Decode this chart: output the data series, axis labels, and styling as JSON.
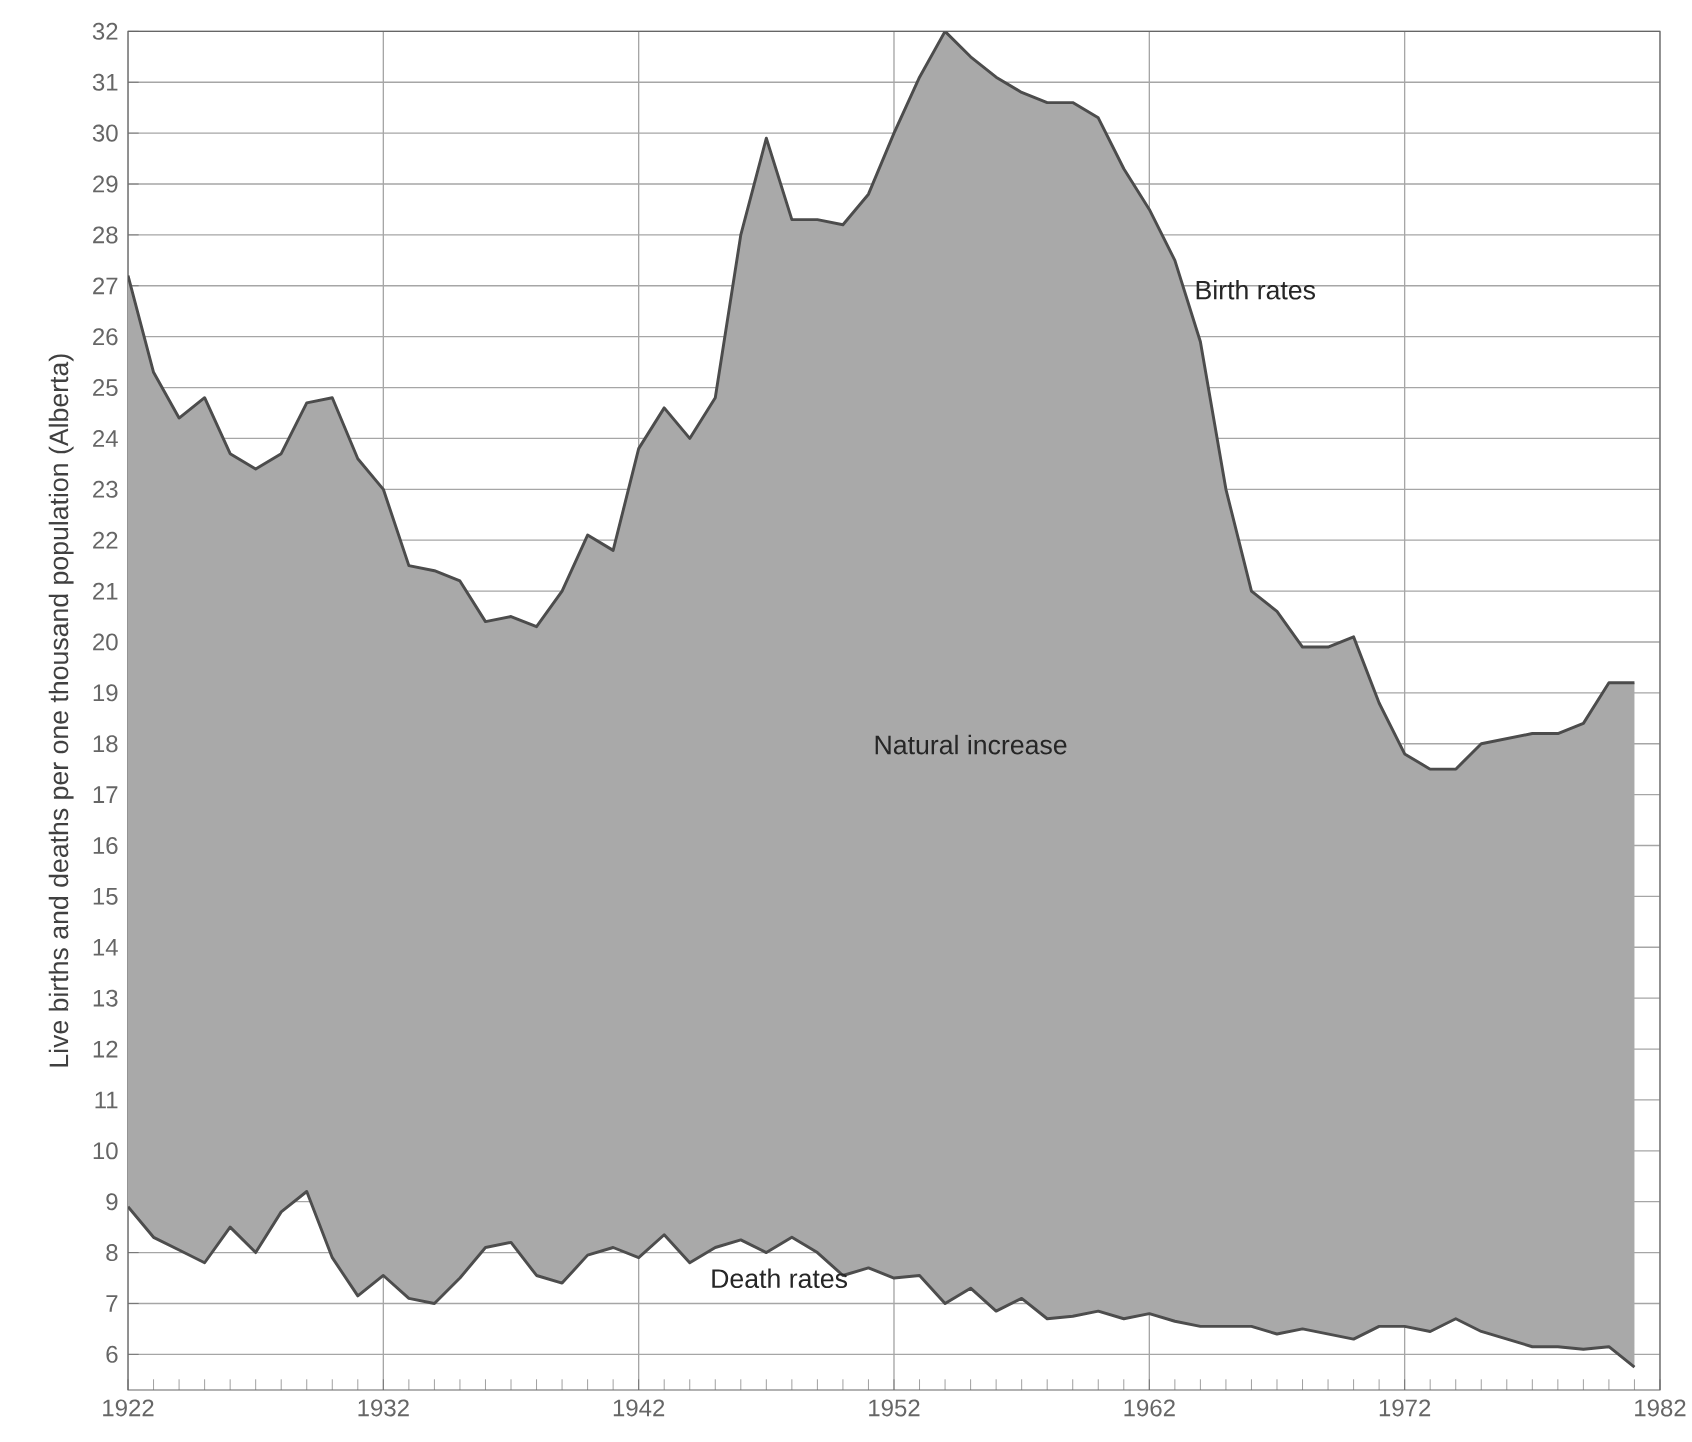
{
  "chart_data": {
    "type": "area",
    "ylabel": "Live births and deaths per one thousand population (Alberta)",
    "x": [
      1922,
      1923,
      1924,
      1925,
      1926,
      1927,
      1928,
      1929,
      1930,
      1931,
      1932,
      1933,
      1934,
      1935,
      1936,
      1937,
      1938,
      1939,
      1940,
      1941,
      1942,
      1943,
      1944,
      1945,
      1946,
      1947,
      1948,
      1949,
      1950,
      1951,
      1952,
      1953,
      1954,
      1955,
      1956,
      1957,
      1958,
      1959,
      1960,
      1961,
      1962,
      1963,
      1964,
      1965,
      1966,
      1967,
      1968,
      1969,
      1970,
      1971,
      1972,
      1973,
      1974,
      1975,
      1976,
      1977,
      1978,
      1979,
      1980,
      1981
    ],
    "series": [
      {
        "name": "Birth rates",
        "color": "#a9a9a9",
        "values": [
          27.2,
          25.3,
          24.4,
          24.8,
          23.7,
          23.4,
          23.7,
          24.7,
          24.8,
          23.6,
          23.0,
          21.5,
          21.4,
          21.2,
          20.4,
          20.5,
          20.3,
          21.0,
          22.1,
          21.8,
          23.8,
          24.6,
          24.0,
          24.8,
          28.0,
          29.9,
          28.3,
          28.3,
          28.2,
          28.8,
          30.0,
          31.1,
          32.0,
          31.5,
          31.1,
          30.8,
          30.6,
          30.6,
          30.3,
          29.3,
          28.5,
          27.5,
          25.9,
          23.0,
          21.0,
          20.6,
          19.9,
          19.9,
          20.1,
          18.8,
          17.8,
          17.5,
          17.5,
          18.0,
          18.1,
          18.2,
          18.2,
          18.4,
          19.2,
          19.2
        ]
      },
      {
        "name": "Death rates",
        "type": "line",
        "color": "#4d4d4d",
        "values": [
          8.9,
          8.3,
          8.05,
          7.8,
          8.5,
          8.0,
          8.8,
          9.2,
          7.9,
          7.15,
          7.55,
          7.1,
          7.0,
          7.5,
          8.1,
          8.2,
          7.55,
          7.4,
          7.95,
          8.1,
          7.9,
          8.35,
          7.8,
          8.1,
          8.25,
          8.0,
          8.3,
          8.0,
          7.55,
          7.7,
          7.5,
          7.55,
          7.0,
          7.3,
          6.85,
          7.1,
          6.7,
          6.75,
          6.85,
          6.7,
          6.8,
          6.65,
          6.55,
          6.55,
          6.55,
          6.4,
          6.5,
          6.4,
          6.3,
          6.55,
          6.55,
          6.45,
          6.7,
          6.45,
          6.3,
          6.15,
          6.15,
          6.1,
          6.15,
          5.75
        ]
      }
    ],
    "annotations": [
      "Natural increase"
    ],
    "xlim": [
      1922,
      1982
    ],
    "xticks": [
      1922,
      1932,
      1942,
      1952,
      1962,
      1972,
      1982
    ],
    "ylim": [
      5.3,
      32
    ],
    "yticks": [
      6,
      7,
      8,
      9,
      10,
      11,
      12,
      13,
      14,
      15,
      16,
      17,
      18,
      19,
      20,
      21,
      22,
      23,
      24,
      25,
      26,
      27,
      28,
      29,
      30,
      31,
      32
    ],
    "grid": true
  }
}
